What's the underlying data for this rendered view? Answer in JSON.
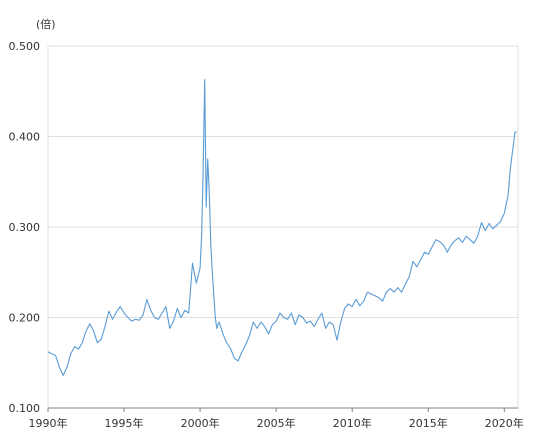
{
  "chart_data": {
    "type": "line",
    "title": "",
    "xlabel": "",
    "ylabel": "",
    "y_unit": "(倍)",
    "xlim": [
      1990.0,
      2020.9
    ],
    "ylim": [
      0.1,
      0.5
    ],
    "y_ticks": [
      0.1,
      0.2,
      0.3,
      0.4,
      0.5
    ],
    "y_tick_labels": [
      "0.100",
      "0.200",
      "0.300",
      "0.400",
      "0.500"
    ],
    "x_ticks": [
      1990,
      1995,
      2000,
      2005,
      2010,
      2015,
      2020
    ],
    "x_tick_labels": [
      "1990年",
      "1995年",
      "2000年",
      "2005年",
      "2010年",
      "2015年",
      "2020年"
    ],
    "grid": true,
    "legend": "none",
    "colors": {
      "line": "#5a9bd5",
      "grid": "#e0e0e0",
      "axis": "#808080"
    },
    "series": [
      {
        "x": [
          1990.0,
          1990.25,
          1990.5,
          1990.75,
          1991.0,
          1991.25,
          1991.5,
          1991.75,
          1992.0,
          1992.25,
          1992.5,
          1992.75,
          1993.0,
          1993.25,
          1993.5,
          1993.75,
          1994.0,
          1994.25,
          1994.5,
          1994.75,
          1995.0,
          1995.25,
          1995.5,
          1995.75,
          1996.0,
          1996.25,
          1996.5,
          1996.75,
          1997.0,
          1997.25,
          1997.5,
          1997.75,
          1998.0,
          1998.25,
          1998.5,
          1998.75,
          1999.0,
          1999.25,
          1999.5,
          1999.75,
          2000.0,
          2000.1,
          2000.2,
          2000.3,
          2000.4,
          2000.5,
          2000.6,
          2000.7,
          2000.8,
          2001.0,
          2001.1,
          2001.25,
          2001.5,
          2001.75,
          2002.0,
          2002.25,
          2002.5,
          2002.75,
          2003.0,
          2003.25,
          2003.5,
          2003.75,
          2004.0,
          2004.25,
          2004.5,
          2004.75,
          2005.0,
          2005.25,
          2005.5,
          2005.75,
          2006.0,
          2006.25,
          2006.5,
          2006.75,
          2007.0,
          2007.25,
          2007.5,
          2007.75,
          2008.0,
          2008.25,
          2008.5,
          2008.75,
          2009.0,
          2009.25,
          2009.5,
          2009.75,
          2010.0,
          2010.25,
          2010.5,
          2010.75,
          2011.0,
          2011.25,
          2011.5,
          2011.75,
          2012.0,
          2012.25,
          2012.5,
          2012.75,
          2013.0,
          2013.25,
          2013.5,
          2013.75,
          2014.0,
          2014.25,
          2014.5,
          2014.75,
          2015.0,
          2015.25,
          2015.5,
          2015.75,
          2016.0,
          2016.25,
          2016.5,
          2016.75,
          2017.0,
          2017.25,
          2017.5,
          2017.75,
          2018.0,
          2018.25,
          2018.5,
          2018.75,
          2019.0,
          2019.25,
          2019.5,
          2019.75,
          2020.0,
          2020.25,
          2020.4,
          2020.55,
          2020.7,
          2020.8
        ],
        "values": [
          0.162,
          0.16,
          0.158,
          0.145,
          0.136,
          0.145,
          0.16,
          0.168,
          0.165,
          0.172,
          0.185,
          0.193,
          0.185,
          0.172,
          0.176,
          0.19,
          0.207,
          0.198,
          0.206,
          0.212,
          0.205,
          0.2,
          0.196,
          0.198,
          0.197,
          0.203,
          0.22,
          0.208,
          0.2,
          0.198,
          0.205,
          0.212,
          0.188,
          0.196,
          0.21,
          0.2,
          0.208,
          0.205,
          0.26,
          0.238,
          0.255,
          0.29,
          0.36,
          0.463,
          0.322,
          0.375,
          0.34,
          0.28,
          0.25,
          0.2,
          0.188,
          0.195,
          0.182,
          0.172,
          0.166,
          0.155,
          0.152,
          0.162,
          0.17,
          0.18,
          0.195,
          0.188,
          0.195,
          0.19,
          0.182,
          0.192,
          0.196,
          0.205,
          0.2,
          0.198,
          0.205,
          0.192,
          0.203,
          0.2,
          0.194,
          0.196,
          0.19,
          0.198,
          0.205,
          0.188,
          0.195,
          0.192,
          0.175,
          0.195,
          0.21,
          0.215,
          0.212,
          0.22,
          0.213,
          0.218,
          0.228,
          0.226,
          0.224,
          0.222,
          0.218,
          0.228,
          0.232,
          0.228,
          0.233,
          0.228,
          0.237,
          0.245,
          0.262,
          0.256,
          0.264,
          0.272,
          0.27,
          0.278,
          0.286,
          0.284,
          0.28,
          0.272,
          0.28,
          0.285,
          0.288,
          0.283,
          0.29,
          0.286,
          0.282,
          0.29,
          0.305,
          0.296,
          0.304,
          0.298,
          0.302,
          0.306,
          0.315,
          0.335,
          0.365,
          0.385,
          0.405,
          0.405
        ]
      }
    ]
  }
}
